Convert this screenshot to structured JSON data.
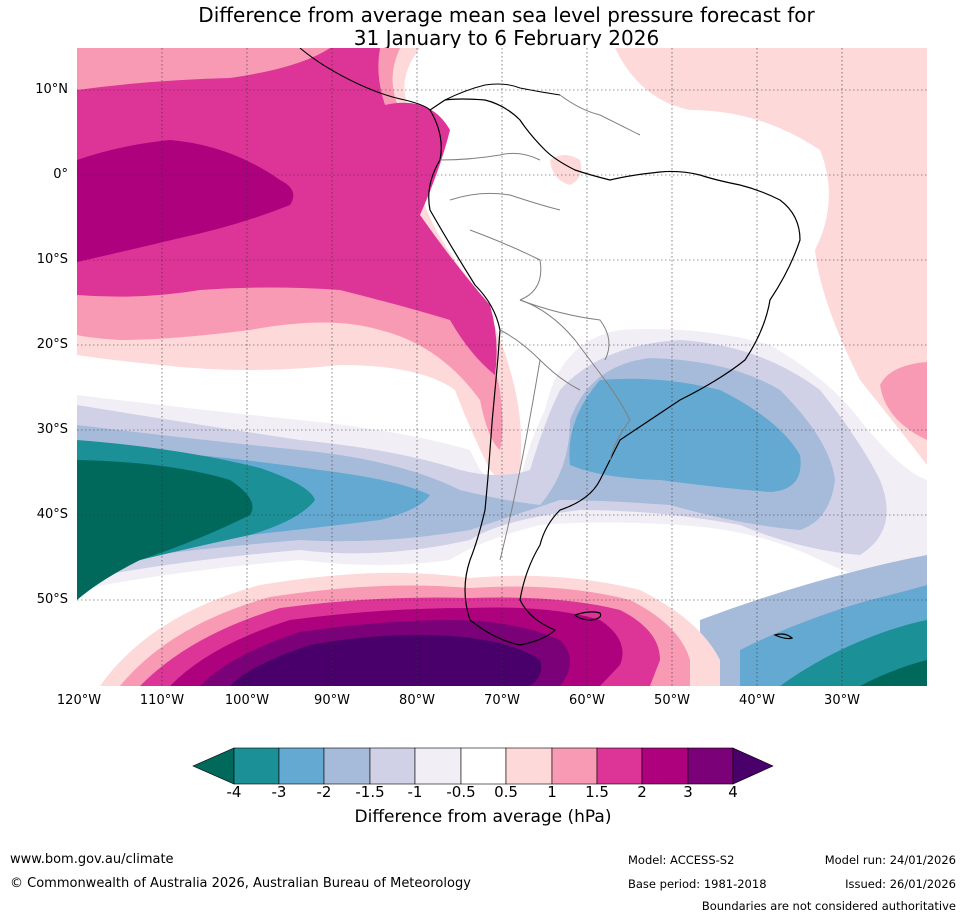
{
  "title": {
    "line1": "Difference from average mean sea level pressure forecast for",
    "line2": "31 January to 6 February 2026"
  },
  "map": {
    "latitude_labels": [
      "10°N",
      "0°",
      "10°S",
      "20°S",
      "30°S",
      "40°S",
      "50°S"
    ],
    "longitude_labels": [
      "120°W",
      "110°W",
      "100°W",
      "90°W",
      "80°W",
      "70°W",
      "60°W",
      "50°W",
      "40°W",
      "30°W"
    ],
    "region": "South America and surrounding Pacific and Atlantic oceans",
    "anomaly_centres": [
      {
        "name": "Equatorial eastern Pacific high anomaly",
        "value_range": "2 to 3 hPa"
      },
      {
        "name": "Drake Passage / Southern Ocean high anomaly",
        "value_range": "above 4 hPa"
      },
      {
        "name": "South-east Pacific low anomaly",
        "value_range": "below -4 hPa"
      },
      {
        "name": "South Atlantic low anomaly",
        "value_range": "-2 to -3 hPa"
      }
    ]
  },
  "colorbar": {
    "ticks": [
      "-4",
      "-3",
      "-2",
      "-1.5",
      "-1",
      "-0.5",
      "0.5",
      "1",
      "1.5",
      "2",
      "3",
      "4"
    ],
    "colors": {
      "below_-4": "#00695c",
      "-4_-3": "#1b9096",
      "-3_-2": "#64a9d1",
      "-2_-1.5": "#a6bbda",
      "-1.5_-1": "#d0d1e6",
      "-1_-0.5": "#f1eef6",
      "-0.5_0.5": "#ffffff",
      "0.5_1": "#fdd9da",
      "1_1.5": "#f99ab5",
      "1.5_2": "#dd3497",
      "2_3": "#ae017e",
      "3_4": "#7a0177",
      "above_4": "#49006a"
    },
    "label": "Difference from average (hPa)"
  },
  "footer": {
    "website": "www.bom.gov.au/climate",
    "copyright": "© Commonwealth of Australia 2026, Australian Bureau of Meteorology",
    "model": "Model: ACCESS-S2",
    "base_period": "Base period: 1981-2018",
    "model_run": "Model run: 24/01/2026",
    "issued": "Issued: 26/01/2026",
    "disclaimer": "Boundaries are not considered authoritative"
  }
}
